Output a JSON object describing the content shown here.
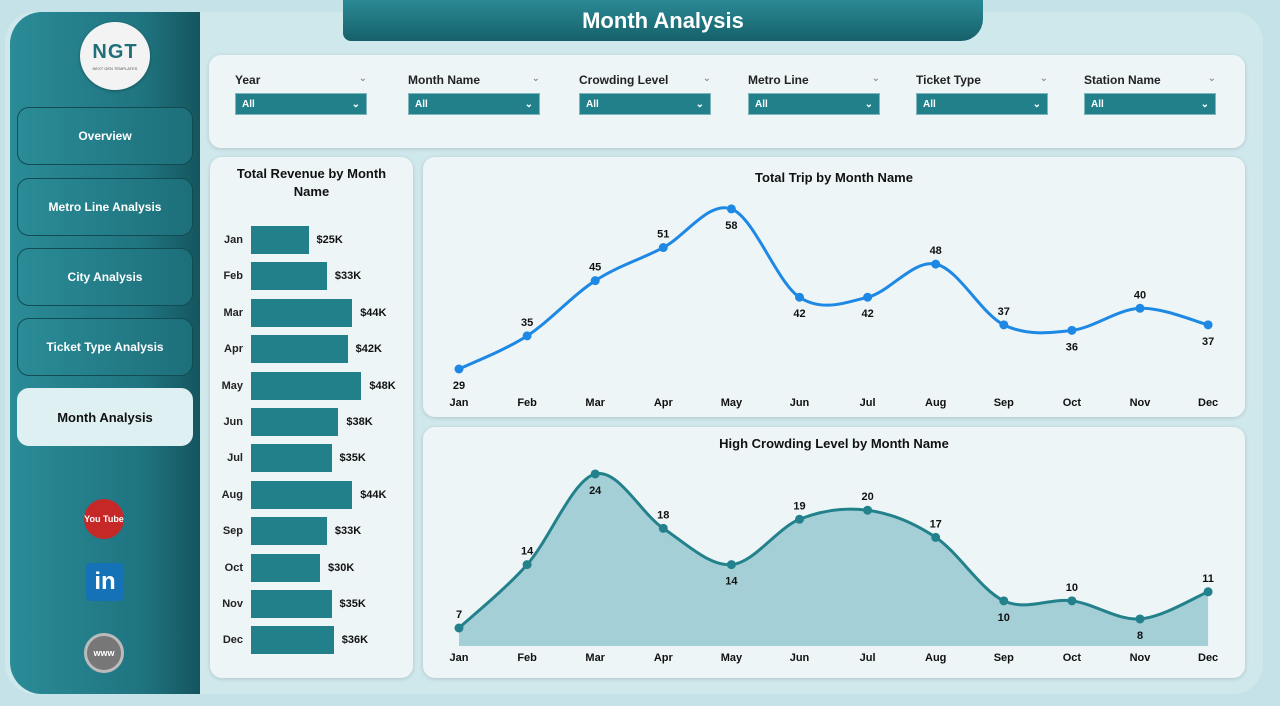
{
  "header": {
    "title": "Month Analysis"
  },
  "logo": {
    "text": "NGT",
    "subtext": "NEXT GEN TEMPLATES"
  },
  "sidebar": {
    "items": [
      {
        "label": "Overview",
        "active": false
      },
      {
        "label": "Metro Line Analysis",
        "active": false
      },
      {
        "label": "City Analysis",
        "active": false
      },
      {
        "label": "Ticket Type Analysis",
        "active": false
      },
      {
        "label": "Month Analysis",
        "active": true
      }
    ],
    "social": [
      {
        "icon": "youtube-icon",
        "label": "You Tube"
      },
      {
        "icon": "linkedin-icon",
        "label": "in"
      },
      {
        "icon": "globe-icon",
        "label": "www"
      }
    ]
  },
  "filters": [
    {
      "label": "Year",
      "value": "All"
    },
    {
      "label": "Month Name",
      "value": "All"
    },
    {
      "label": "Crowding Level",
      "value": "All"
    },
    {
      "label": "Metro Line",
      "value": "All"
    },
    {
      "label": "Ticket Type",
      "value": "All"
    },
    {
      "label": "Station Name",
      "value": "All"
    }
  ],
  "colors": {
    "accent": "#22808b",
    "line": "#1e88e5",
    "area_line": "#23818c",
    "area_fill": "#9ccbd1"
  },
  "chart_data": [
    {
      "type": "bar",
      "title": "Total Revenue by Month Name",
      "orientation": "horizontal",
      "categories": [
        "Jan",
        "Feb",
        "Mar",
        "Apr",
        "May",
        "Jun",
        "Jul",
        "Aug",
        "Sep",
        "Oct",
        "Nov",
        "Dec"
      ],
      "values": [
        25,
        33,
        44,
        42,
        48,
        38,
        35,
        44,
        33,
        30,
        35,
        36
      ],
      "labels": [
        "$25K",
        "$33K",
        "$44K",
        "$42K",
        "$48K",
        "$38K",
        "$35K",
        "$44K",
        "$33K",
        "$30K",
        "$35K",
        "$36K"
      ],
      "unit": "$K"
    },
    {
      "type": "line",
      "title": "Total Trip by Month Name",
      "categories": [
        "Jan",
        "Feb",
        "Mar",
        "Apr",
        "May",
        "Jun",
        "Jul",
        "Aug",
        "Sep",
        "Oct",
        "Nov",
        "Dec"
      ],
      "values": [
        29,
        35,
        45,
        51,
        58,
        42,
        42,
        48,
        37,
        36,
        40,
        37
      ]
    },
    {
      "type": "area",
      "title": "High Crowding Level by Month Name",
      "categories": [
        "Jan",
        "Feb",
        "Mar",
        "Apr",
        "May",
        "Jun",
        "Jul",
        "Aug",
        "Sep",
        "Oct",
        "Nov",
        "Dec"
      ],
      "values": [
        7,
        14,
        24,
        18,
        14,
        19,
        20,
        17,
        10,
        10,
        8,
        11
      ]
    }
  ]
}
